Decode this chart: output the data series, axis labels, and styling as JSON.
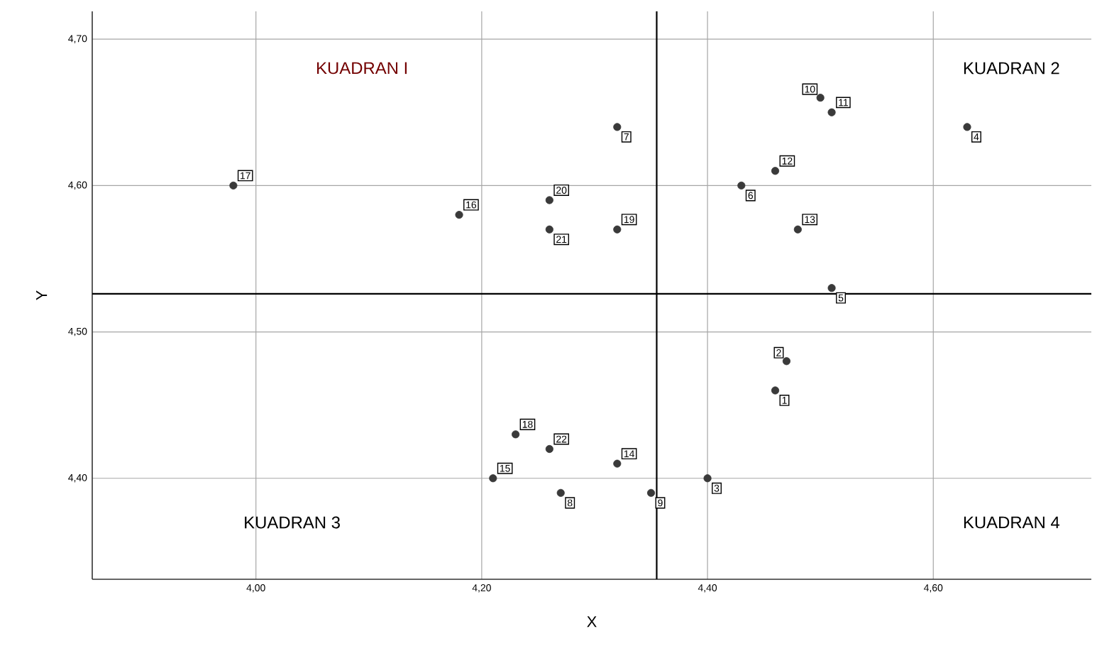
{
  "chart_data": {
    "type": "scatter",
    "xlabel": "X",
    "ylabel": "Y",
    "x": [
      4.46,
      4.47,
      4.4,
      4.63,
      4.51,
      4.43,
      4.32,
      4.27,
      4.35,
      4.5,
      4.51,
      4.46,
      4.48,
      4.32,
      4.21,
      4.18,
      3.98,
      4.23,
      4.32,
      4.26,
      4.26,
      4.26
    ],
    "values": [
      4.46,
      4.48,
      4.4,
      4.64,
      4.53,
      4.6,
      4.64,
      4.39,
      4.39,
      4.66,
      4.65,
      4.61,
      4.57,
      4.41,
      4.4,
      4.58,
      4.6,
      4.43,
      4.57,
      4.59,
      4.57,
      4.42
    ],
    "color": "#3a3a3a",
    "marker": "circle",
    "xlim": [
      3.855,
      4.74
    ],
    "ylim": [
      4.331,
      4.719
    ],
    "xticks": [
      {
        "value": 4.0,
        "label": "4,00"
      },
      {
        "value": 4.2,
        "label": "4,20"
      },
      {
        "value": 4.4,
        "label": "4,40"
      },
      {
        "value": 4.6,
        "label": "4,60"
      }
    ],
    "yticks": [
      {
        "value": 4.4,
        "label": "4,40"
      },
      {
        "value": 4.5,
        "label": "4,50"
      },
      {
        "value": 4.6,
        "label": "4,60"
      },
      {
        "value": 4.7,
        "label": "4,70"
      }
    ],
    "grid": true,
    "ref_lines": [
      {
        "axis": "x",
        "value": 4.355,
        "color": "#000000"
      },
      {
        "axis": "y",
        "value": 4.526,
        "color": "#000000"
      }
    ],
    "annotations": [
      "KUADRAN I",
      "KUADRAN 2",
      "KUADRAN 3",
      "KUADRAN 4",
      {
        "text": "1",
        "x": 4.46,
        "y": 4.46
      },
      {
        "text": "2",
        "x": 4.47,
        "y": 4.48
      },
      {
        "text": "3",
        "x": 4.4,
        "y": 4.4
      },
      {
        "text": "4",
        "x": 4.63,
        "y": 4.64
      },
      {
        "text": "5",
        "x": 4.51,
        "y": 4.53
      },
      {
        "text": "6",
        "x": 4.43,
        "y": 4.6
      },
      {
        "text": "7",
        "x": 4.32,
        "y": 4.64
      },
      {
        "text": "8",
        "x": 4.27,
        "y": 4.39
      },
      {
        "text": "9",
        "x": 4.35,
        "y": 4.39
      },
      {
        "text": "10",
        "x": 4.5,
        "y": 4.66
      },
      {
        "text": "11",
        "x": 4.51,
        "y": 4.65
      },
      {
        "text": "12",
        "x": 4.46,
        "y": 4.61
      },
      {
        "text": "13",
        "x": 4.48,
        "y": 4.57
      },
      {
        "text": "14",
        "x": 4.32,
        "y": 4.41
      },
      {
        "text": "15",
        "x": 4.21,
        "y": 4.4
      },
      {
        "text": "16",
        "x": 4.18,
        "y": 4.58
      },
      {
        "text": "17",
        "x": 3.98,
        "y": 4.6
      },
      {
        "text": "18",
        "x": 4.23,
        "y": 4.43
      },
      {
        "text": "19",
        "x": 4.32,
        "y": 4.57
      },
      {
        "text": "20",
        "x": 4.26,
        "y": 4.59
      },
      {
        "text": "21",
        "x": 4.26,
        "y": 4.57
      },
      {
        "text": "22",
        "x": 4.26,
        "y": 4.42
      }
    ]
  }
}
